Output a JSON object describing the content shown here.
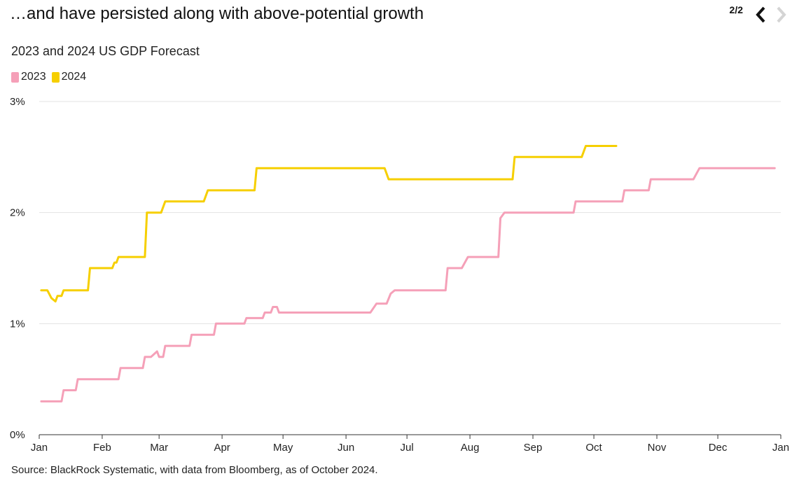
{
  "header": {
    "headline": "…and have persisted along with above-potential growth",
    "pager_count": "2/2",
    "prev_icon": "chevron-left-icon",
    "next_icon": "chevron-right-icon"
  },
  "colors": {
    "series_2023": "#f5a0b8",
    "series_2024": "#f6cf00",
    "grid": "#e3e3e3",
    "pager_active": "#111111",
    "pager_disabled": "#d4d4d4"
  },
  "chart_data": {
    "type": "line",
    "title": "2023 and 2024 US GDP Forecast",
    "xlabel": "",
    "ylabel": "",
    "ylim": [
      0,
      3
    ],
    "y_ticks": [
      {
        "value": 0,
        "label": "0%"
      },
      {
        "value": 1,
        "label": "1%"
      },
      {
        "value": 2,
        "label": "2%"
      },
      {
        "value": 3,
        "label": "3%"
      }
    ],
    "x_ticks": [
      {
        "value": 0,
        "label": "Jan"
      },
      {
        "value": 31,
        "label": "Feb"
      },
      {
        "value": 59,
        "label": "Mar"
      },
      {
        "value": 90,
        "label": "Apr"
      },
      {
        "value": 120,
        "label": "May"
      },
      {
        "value": 151,
        "label": "Jun"
      },
      {
        "value": 181,
        "label": "Jul"
      },
      {
        "value": 212,
        "label": "Aug"
      },
      {
        "value": 243,
        "label": "Sep"
      },
      {
        "value": 273,
        "label": "Oct"
      },
      {
        "value": 304,
        "label": "Nov"
      },
      {
        "value": 334,
        "label": "Dec"
      },
      {
        "value": 365,
        "label": "Jan"
      }
    ],
    "xlim": [
      0,
      365
    ],
    "grid": true,
    "legend_position": "top-left",
    "series": [
      {
        "name": "2023",
        "color": "#f5a0b8",
        "points": [
          [
            1,
            0.3
          ],
          [
            11,
            0.3
          ],
          [
            12,
            0.4
          ],
          [
            18,
            0.4
          ],
          [
            19,
            0.5
          ],
          [
            39,
            0.5
          ],
          [
            40,
            0.6
          ],
          [
            51,
            0.6
          ],
          [
            52,
            0.7
          ],
          [
            55,
            0.7
          ],
          [
            58,
            0.75
          ],
          [
            59,
            0.7
          ],
          [
            61,
            0.7
          ],
          [
            62,
            0.8
          ],
          [
            74,
            0.8
          ],
          [
            75,
            0.9
          ],
          [
            86,
            0.9
          ],
          [
            87,
            1.0
          ],
          [
            101,
            1.0
          ],
          [
            102,
            1.05
          ],
          [
            110,
            1.05
          ],
          [
            111,
            1.1
          ],
          [
            114,
            1.1
          ],
          [
            115,
            1.15
          ],
          [
            117,
            1.15
          ],
          [
            118,
            1.1
          ],
          [
            163,
            1.1
          ],
          [
            166,
            1.18
          ],
          [
            171,
            1.18
          ],
          [
            173,
            1.27
          ],
          [
            175,
            1.3
          ],
          [
            200,
            1.3
          ],
          [
            201,
            1.5
          ],
          [
            208,
            1.5
          ],
          [
            211,
            1.6
          ],
          [
            226,
            1.6
          ],
          [
            227,
            1.95
          ],
          [
            229,
            2.0
          ],
          [
            263,
            2.0
          ],
          [
            264,
            2.1
          ],
          [
            287,
            2.1
          ],
          [
            288,
            2.2
          ],
          [
            300,
            2.2
          ],
          [
            301,
            2.3
          ],
          [
            322,
            2.3
          ],
          [
            325,
            2.4
          ],
          [
            362,
            2.4
          ]
        ]
      },
      {
        "name": "2024",
        "color": "#f6cf00",
        "points": [
          [
            1,
            1.3
          ],
          [
            4,
            1.3
          ],
          [
            6,
            1.23
          ],
          [
            8,
            1.2
          ],
          [
            9,
            1.25
          ],
          [
            11,
            1.25
          ],
          [
            12,
            1.3
          ],
          [
            24,
            1.3
          ],
          [
            25,
            1.5
          ],
          [
            36,
            1.5
          ],
          [
            37,
            1.55
          ],
          [
            38,
            1.55
          ],
          [
            39,
            1.6
          ],
          [
            52,
            1.6
          ],
          [
            53,
            2.0
          ],
          [
            60,
            2.0
          ],
          [
            62,
            2.1
          ],
          [
            81,
            2.1
          ],
          [
            83,
            2.2
          ],
          [
            106,
            2.2
          ],
          [
            107,
            2.4
          ],
          [
            170,
            2.4
          ],
          [
            172,
            2.3
          ],
          [
            233,
            2.3
          ],
          [
            234,
            2.5
          ],
          [
            267,
            2.5
          ],
          [
            269,
            2.6
          ],
          [
            284,
            2.6
          ]
        ]
      }
    ]
  },
  "footer": {
    "source": "Source: BlackRock Systematic, with data from Bloomberg, as of October 2024."
  }
}
